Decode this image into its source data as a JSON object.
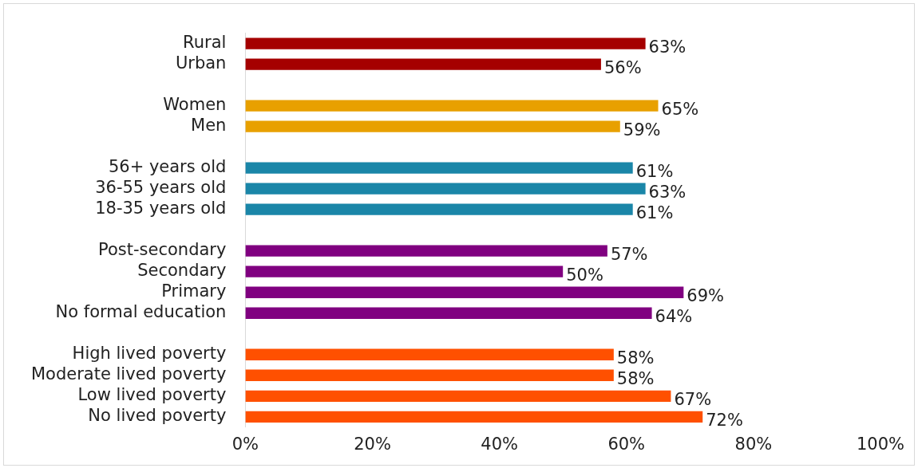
{
  "chart_data": {
    "type": "bar",
    "orientation": "horizontal",
    "categories": [
      "Rural",
      "Urban",
      null,
      "Women",
      "Men",
      null,
      "56+ years old",
      "36-55 years old",
      "18-35 years old",
      null,
      "Post-secondary",
      "Secondary",
      "Primary",
      "No formal education",
      null,
      "High lived poverty",
      "Moderate lived poverty",
      "Low lived poverty",
      "No lived poverty"
    ],
    "values": [
      63,
      56,
      null,
      65,
      59,
      null,
      61,
      63,
      61,
      null,
      57,
      50,
      69,
      64,
      null,
      58,
      58,
      67,
      72
    ],
    "colors": [
      "#a50000",
      "#a50000",
      "#a50000",
      "#e8a000",
      "#e8a000",
      "#e8a000",
      "#1a86a8",
      "#1a86a8",
      "#1a86a8",
      "#800080",
      "#800080",
      "#800080",
      "#800080",
      "#800080",
      "#ff5000",
      "#ff5000",
      "#ff5000",
      "#ff5000",
      "#ff5000"
    ],
    "value_labels": [
      "63%",
      "56%",
      null,
      "65%",
      "59%",
      null,
      "61%",
      "63%",
      "61%",
      null,
      "57%",
      "50%",
      "69%",
      "64%",
      null,
      "58%",
      "58%",
      "67%",
      "72%"
    ],
    "xlim": [
      0,
      100
    ],
    "xticks": [
      {
        "value": 0,
        "label": "0%"
      },
      {
        "value": 20,
        "label": "20%"
      },
      {
        "value": 40,
        "label": "40%"
      },
      {
        "value": 60,
        "label": "60%"
      },
      {
        "value": 80,
        "label": "80%"
      },
      {
        "value": 100,
        "label": "100%"
      }
    ]
  }
}
